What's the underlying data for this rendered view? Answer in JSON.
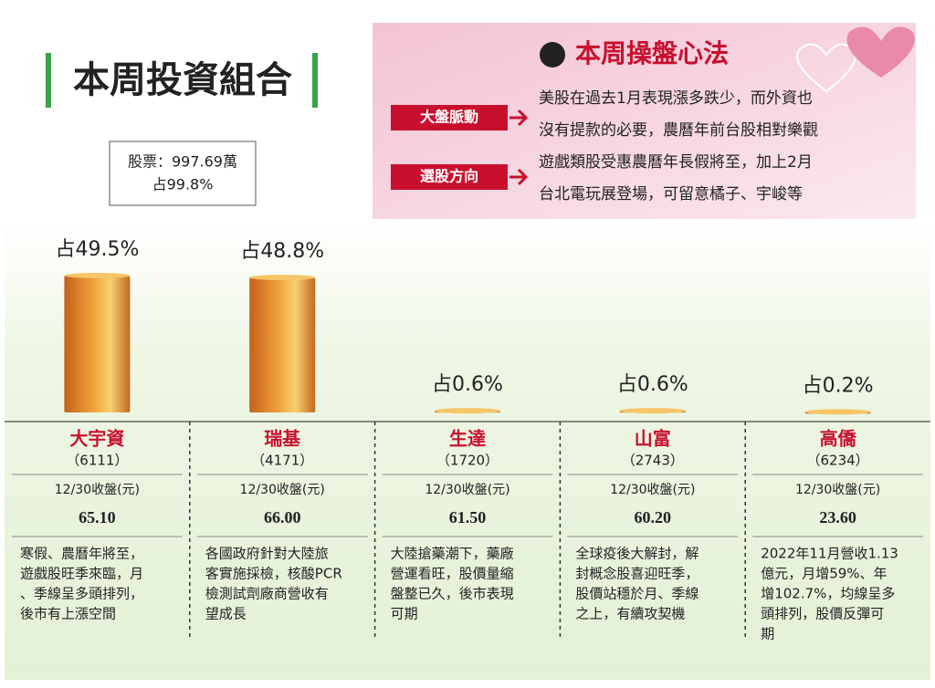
{
  "title": "本周投資組合",
  "summary": {
    "stocks": "股票：997.69萬",
    "share": "占99.8%"
  },
  "strategy": {
    "title": "本周操盤心法",
    "tags": [
      "大盤脈動",
      "選股方向"
    ],
    "text_lines": [
      "美股在過去1月表現漲多跌少，而外資也",
      "沒有提款的必要，農曆年前台股相對樂觀",
      "遊戲類股受惠農曆年長假將至，加上2月",
      "台北電玩展登場，可留意橘子、宇峻等"
    ]
  },
  "holdings": {
    "type": "bar",
    "categories": [
      "大宇資",
      "瑞基",
      "生達",
      "山富",
      "高僑"
    ],
    "codes": [
      "（6111）",
      "（4171）",
      "（1720）",
      "（2743）",
      "（6234）"
    ],
    "values": [
      49.5,
      48.8,
      0.6,
      0.6,
      0.2
    ],
    "value_labels": [
      "占49.5%",
      "占48.8%",
      "占0.6%",
      "占0.6%",
      "占0.2%"
    ],
    "close_labels": [
      "12/30收盤(元)",
      "12/30收盤(元)",
      "12/30收盤(元)",
      "12/30收盤(元)",
      "12/30收盤(元)"
    ],
    "closes": [
      "65.10",
      "66.00",
      "61.50",
      "60.20",
      "23.60"
    ],
    "descriptions": [
      [
        "寒假、農曆年將至，",
        "遊戲股旺季來臨，月",
        "、季線呈多頭排列，",
        "後市有上漲空間"
      ],
      [
        "各國政府針對大陸旅",
        "客實施採檢，核酸PCR",
        "檢測試劑廠商營收有",
        "望成長"
      ],
      [
        "大陸搶藥潮下，藥廠",
        "營運看旺，股價量縮",
        "盤整已久，後市表現",
        "可期"
      ],
      [
        "全球疫後大解封，解",
        "封概念股喜迎旺季，",
        "股價站穩於月、季線",
        "之上，有續攻契機"
      ],
      [
        "2022年11月營收1.13",
        "億元，月增59%、年",
        "增102.7%，均線呈多",
        "頭排列，股價反彈可",
        "期"
      ]
    ]
  }
}
